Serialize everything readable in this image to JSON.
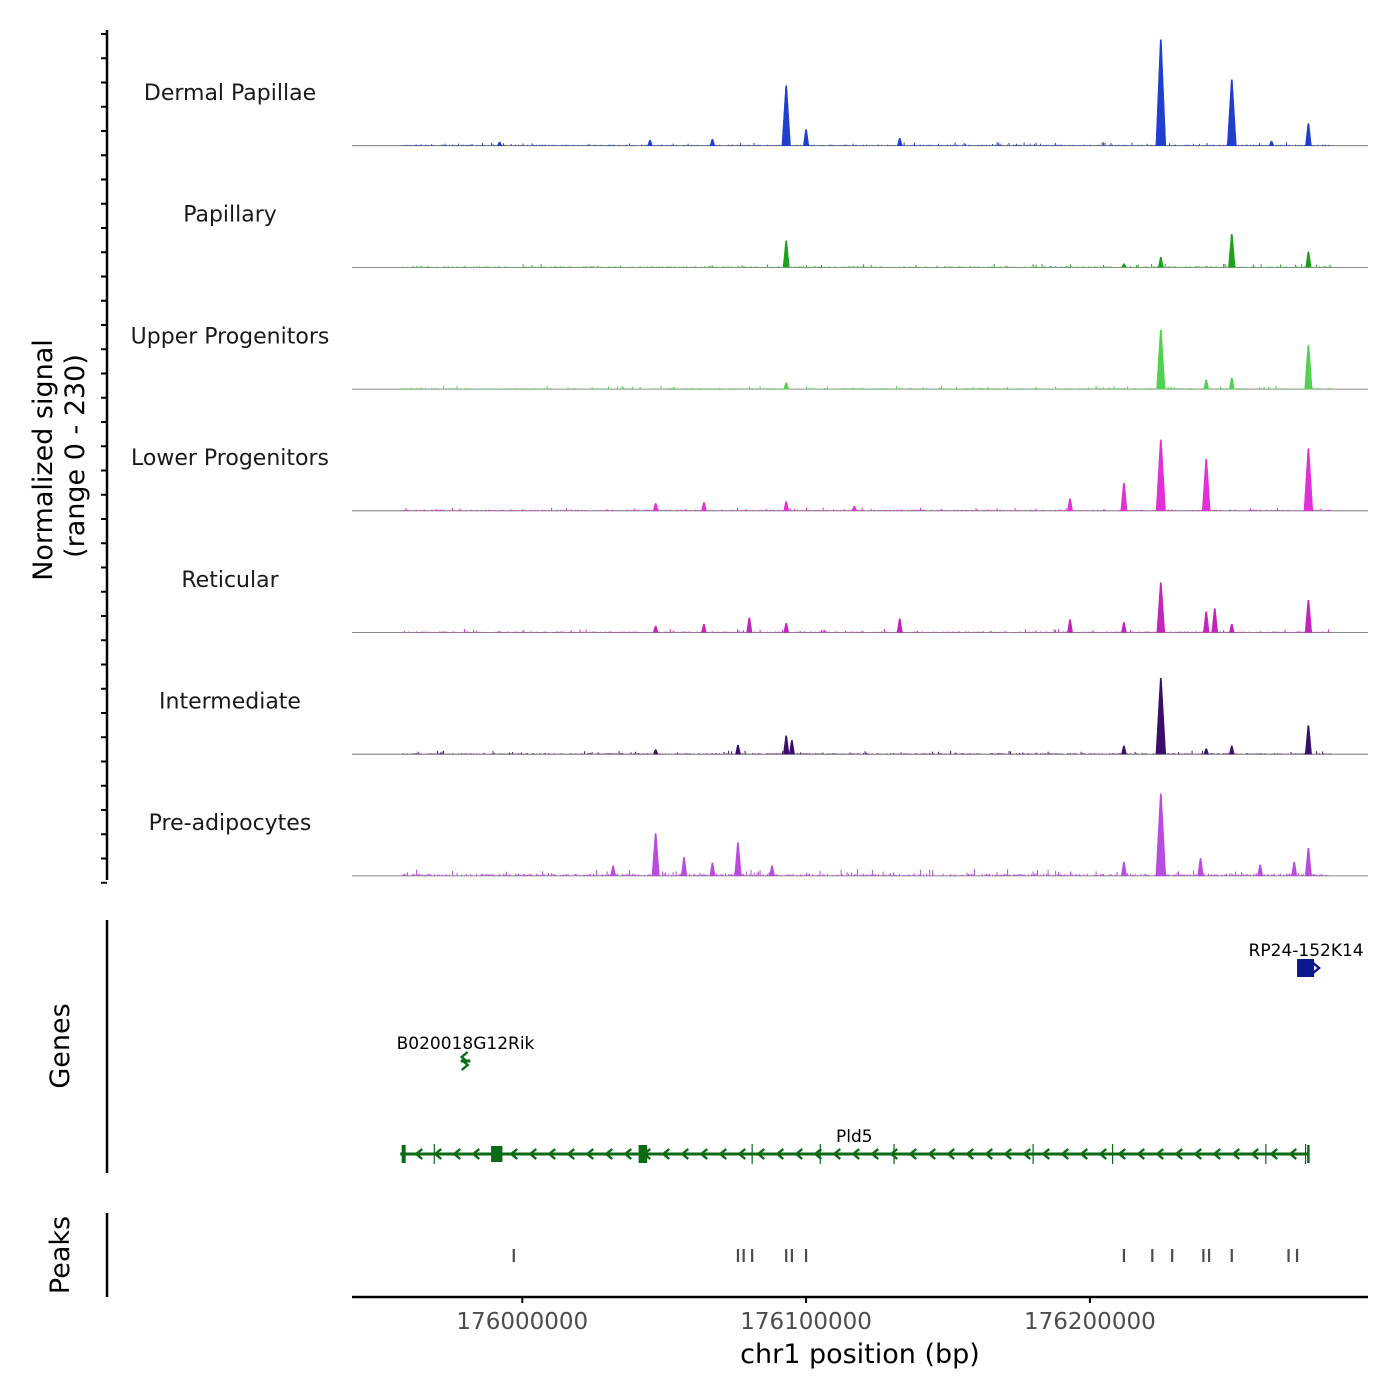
{
  "chart_data": {
    "type": "area",
    "title": "",
    "coverage": {
      "ylabel_line1": "Normalized signal",
      "ylabel_line2": "(range 0 - 230)",
      "ylim": [
        0,
        230
      ],
      "tracks": [
        {
          "name": "Dermal Papillae",
          "color": "#1f3fcf",
          "peaks": [
            [
              175992000,
              8
            ],
            [
              176045000,
              12
            ],
            [
              176067000,
              14
            ],
            [
              176093000,
              130
            ],
            [
              176100000,
              35
            ],
            [
              176133000,
              16
            ],
            [
              176225000,
              230
            ],
            [
              176250000,
              143
            ],
            [
              176264000,
              10
            ],
            [
              176277000,
              48
            ]
          ]
        },
        {
          "name": "Papillary",
          "color": "#1fa01f",
          "peaks": [
            [
              176093000,
              58
            ],
            [
              176225000,
              22
            ],
            [
              176212000,
              8
            ],
            [
              176250000,
              72
            ],
            [
              176277000,
              34
            ]
          ]
        },
        {
          "name": "Upper Progenitors",
          "color": "#4fd24f",
          "peaks": [
            [
              176093000,
              14
            ],
            [
              176225000,
              128
            ],
            [
              176241000,
              20
            ],
            [
              176250000,
              24
            ],
            [
              176277000,
              95
            ]
          ]
        },
        {
          "name": "Lower Progenitors",
          "color": "#e030d6",
          "peaks": [
            [
              176047000,
              16
            ],
            [
              176064000,
              18
            ],
            [
              176093000,
              20
            ],
            [
              176117000,
              10
            ],
            [
              176193000,
              26
            ],
            [
              176212000,
              60
            ],
            [
              176225000,
              154
            ],
            [
              176241000,
              112
            ],
            [
              176277000,
              135
            ]
          ]
        },
        {
          "name": "Reticular",
          "color": "#c424bd",
          "peaks": [
            [
              176047000,
              14
            ],
            [
              176064000,
              18
            ],
            [
              176080000,
              32
            ],
            [
              176093000,
              20
            ],
            [
              176133000,
              30
            ],
            [
              176193000,
              28
            ],
            [
              176212000,
              22
            ],
            [
              176225000,
              108
            ],
            [
              176241000,
              45
            ],
            [
              176244000,
              52
            ],
            [
              176250000,
              18
            ],
            [
              176277000,
              70
            ]
          ]
        },
        {
          "name": "Intermediate",
          "color": "#3a0f6b",
          "peaks": [
            [
              176047000,
              10
            ],
            [
              176076000,
              20
            ],
            [
              176093000,
              40
            ],
            [
              176095000,
              30
            ],
            [
              176212000,
              18
            ],
            [
              176225000,
              165
            ],
            [
              176241000,
              12
            ],
            [
              176250000,
              18
            ],
            [
              176277000,
              62
            ]
          ]
        },
        {
          "name": "Pre-adipocytes",
          "color": "#b84be0",
          "peaks": [
            [
              176032000,
              22
            ],
            [
              176047000,
              92
            ],
            [
              176057000,
              40
            ],
            [
              176067000,
              28
            ],
            [
              176076000,
              72
            ],
            [
              176088000,
              22
            ],
            [
              176212000,
              30
            ],
            [
              176225000,
              178
            ],
            [
              176239000,
              38
            ],
            [
              176260000,
              24
            ],
            [
              176272000,
              30
            ],
            [
              176277000,
              60
            ]
          ]
        }
      ]
    },
    "genes": {
      "ylabel": "Genes",
      "items": [
        {
          "name": "RP24-152K14",
          "start": 176273000,
          "end": 176279000,
          "strand": "+",
          "color": "#0a1a8c"
        },
        {
          "name": "B020018G12Rik",
          "start": 175979000,
          "end": 175981000,
          "strand": "-",
          "color": "#0a6b14"
        },
        {
          "name": "Pld5",
          "start": 175957000,
          "end": 176277000,
          "strand": "-",
          "color": "#0a6b14"
        }
      ]
    },
    "peaks": {
      "ylabel": "Peaks",
      "positions": [
        175997000,
        176076000,
        176078000,
        176081000,
        176093000,
        176095000,
        176100000,
        176212000,
        176222000,
        176229000,
        176240000,
        176242000,
        176250000,
        176270000,
        176273000
      ]
    },
    "x_axis": {
      "xlabel": "chr1 position (bp)",
      "xlim": [
        175940000,
        176298000
      ],
      "ticks": [
        176000000,
        176100000,
        176200000
      ],
      "tick_labels": [
        "176000000",
        "176100000",
        "176200000"
      ]
    }
  }
}
